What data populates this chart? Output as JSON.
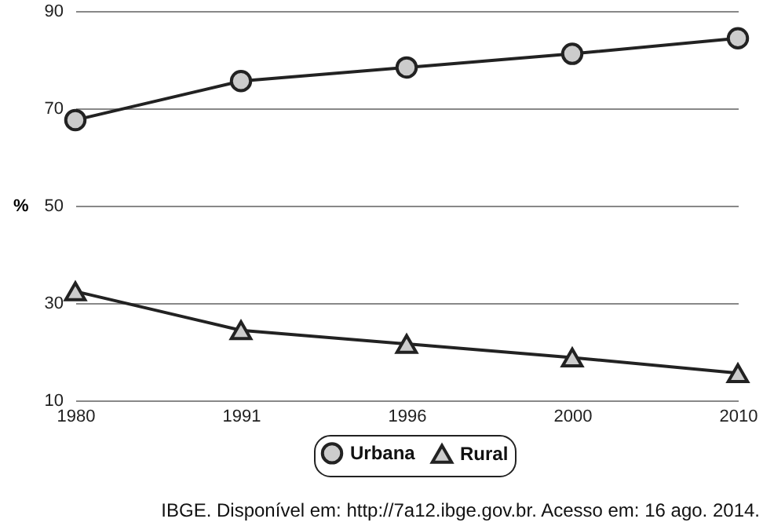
{
  "chart_data": {
    "type": "line",
    "ylabel": "%",
    "categories": [
      "1980",
      "1991",
      "1996",
      "2000",
      "2010"
    ],
    "series": [
      {
        "name": "Urbana",
        "color": "#222222",
        "marker": "circle",
        "values": [
          67.6,
          75.6,
          78.4,
          81.2,
          84.4
        ]
      },
      {
        "name": "Rural",
        "color": "#222222",
        "marker": "triangle",
        "values": [
          32.4,
          24.4,
          21.6,
          18.8,
          15.6
        ]
      }
    ],
    "ylim": [
      10,
      90
    ],
    "yticks": [
      10,
      30,
      50,
      70,
      90
    ],
    "grid": "y",
    "legend": "bottom",
    "annotations": [
      "IBGE. Disponível em: http://7a12.ibge.gov.br. Acesso em: 16 ago. 2014."
    ]
  }
}
